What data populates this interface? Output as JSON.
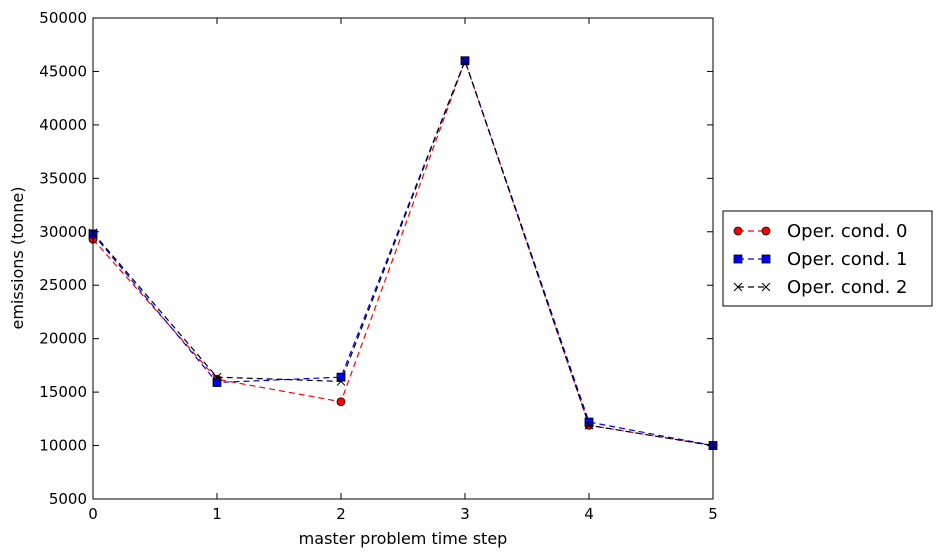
{
  "chart_data": {
    "type": "line",
    "xlabel": "master problem time step",
    "ylabel": "emissions (tonne)",
    "x": [
      0,
      1,
      2,
      3,
      4,
      5
    ],
    "xlim": [
      0,
      5
    ],
    "ylim": [
      5000,
      50000
    ],
    "xticks": [
      "0",
      "1",
      "2",
      "3",
      "4",
      "5"
    ],
    "yticks": [
      "5000",
      "10000",
      "15000",
      "20000",
      "25000",
      "30000",
      "35000",
      "40000",
      "45000",
      "50000"
    ],
    "grid": false,
    "legend_position": "outside-right",
    "series": [
      {
        "name": "Oper. cond. 0",
        "color": "#ff0000",
        "marker": "circle",
        "line": "dashed",
        "values": [
          29300,
          16200,
          14100,
          46000,
          11900,
          10000
        ]
      },
      {
        "name": "Oper. cond. 1",
        "color": "#0000ff",
        "marker": "square",
        "line": "dashed",
        "values": [
          29800,
          15900,
          16400,
          46000,
          12200,
          10000
        ]
      },
      {
        "name": "Oper. cond. 2",
        "color": "#000000",
        "marker": "x",
        "line": "dashed",
        "values": [
          29900,
          16400,
          16000,
          46000,
          11900,
          10000
        ]
      }
    ]
  }
}
